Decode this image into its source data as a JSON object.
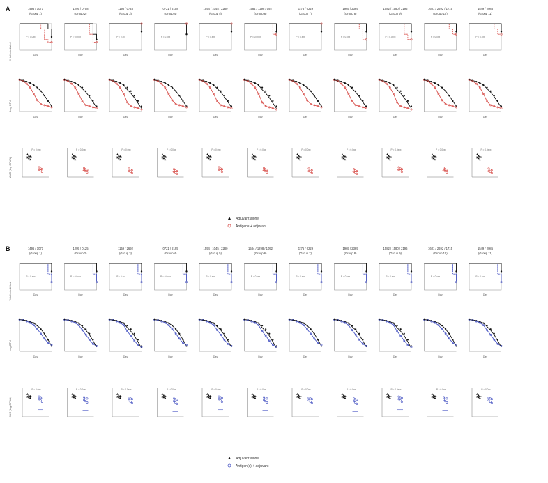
{
  "figure": {
    "panels": [
      {
        "letter": "A",
        "series_color": "#d9534f",
        "legend": [
          {
            "marker": "filled-triangle",
            "label": "Adjuvant alone"
          },
          {
            "marker": "open-circle",
            "label": "Antigens + adjuvant"
          }
        ],
        "row_ylabels": [
          "% infected/viral",
          "Log CFU",
          "AUC (log CFU/L)"
        ],
        "xlabel": "Day",
        "groups": [
          {
            "ids": "1496 / 1071",
            "group": "(Group 1)"
          },
          {
            "ids": "1295 / 0758",
            "group": "(Group 2)"
          },
          {
            "ids": "1198 / 0748",
            "group": "(Group 3)"
          },
          {
            "ids": "0721 / 2158",
            "group": "(Group 4)"
          },
          {
            "ids": "1594 / 1045 / 2280",
            "group": "(Group 5)"
          },
          {
            "ids": "1584 / 1298 / 092",
            "group": "(Group 6)"
          },
          {
            "ids": "0275 / 0229",
            "group": "(Group 7)"
          },
          {
            "ids": "1965 / 2369",
            "group": "(Group 8)"
          },
          {
            "ids": "1582 / 1580 / 2196",
            "group": "(Group 9)"
          },
          {
            "ids": "1601 / 2692 / 1715",
            "group": "(Group 10)"
          },
          {
            "ids": "1549 / 2085",
            "group": "(Group 11)"
          }
        ],
        "pvals_row1": [
          "P = 0.0xx",
          "P = 0.0xxx",
          "P = 0.xx",
          "P = 0.0xx",
          "P = 0.xxx",
          "P = 0.0xxx",
          "P = 0.xxx",
          "P = 0.0xx",
          "P = 0.0xxx",
          "P = 0.0xx",
          "P = 0.xxx"
        ],
        "pvals_row3": [
          "P = 0.0xx",
          "P = 0.0xxx",
          "P = 0.0xx",
          "P = 0.0xx",
          "P = 0.0xx",
          "P = 0.0xx",
          "P = 0.0xx",
          "P = 0.0xx",
          "P = 0.0xxx",
          "P = 0.0xxx",
          "P = 0.0xxx"
        ]
      },
      {
        "letter": "B",
        "series_color": "#4a57c4",
        "legend": [
          {
            "marker": "filled-triangle",
            "label": "Adjuvant alone"
          },
          {
            "marker": "open-circle",
            "label": "Antigen(s) + adjuvant"
          }
        ],
        "row_ylabels": [
          "% infected/viral",
          "Log CFU",
          "AUC (log CFU/L)"
        ],
        "xlabel": "Day",
        "groups": [
          {
            "ids": "1496 / 1071",
            "group": "(Group 1)"
          },
          {
            "ids": "1295 / 0125",
            "group": "(Group 2)"
          },
          {
            "ids": "1159 / 2692",
            "group": "(Group 3)"
          },
          {
            "ids": "0721 / 2195",
            "group": "(Group 4)"
          },
          {
            "ids": "1594 / 1045 / 2280",
            "group": "(Group 5)"
          },
          {
            "ids": "1584 / 1298 / 1092",
            "group": "(Group 6)"
          },
          {
            "ids": "0275 / 0229",
            "group": "(Group 7)"
          },
          {
            "ids": "1965 / 2369",
            "group": "(Group 8)"
          },
          {
            "ids": "1582 / 1580 / 2196",
            "group": "(Group 9)"
          },
          {
            "ids": "1601 / 2692 / 1715",
            "group": "(Group 10)"
          },
          {
            "ids": "1549 / 2085",
            "group": "(Group 11)"
          }
        ],
        "pvals_row1": [
          "P = 0.xxx",
          "P = 0.0xxx",
          "P = 0.xx",
          "P = 0.0xxx",
          "P = 0.xxx",
          "P = 0.xxx",
          "P = 0.xxx",
          "P = 0.xxx",
          "P = 0.xxx",
          "P = 0.xxx",
          "P = 0.xxx"
        ],
        "pvals_row3": [
          "P = 0.0xx",
          "P = 0.0xxx",
          "P = 0.0xxx",
          "P = 0.0xx",
          "P = 0.0xx",
          "P = 0.0xx",
          "P = 0.0xx",
          "P = 0.0xx",
          "P = 0.0xxx",
          "P = 0.0xx",
          "P = 0.0xx"
        ]
      }
    ]
  },
  "chart_data": [
    {
      "type": "line",
      "description_source": "Panel A row 1 (survival-style step curves per group)",
      "x": [
        0,
        1,
        2,
        3,
        4,
        5,
        6,
        7,
        8,
        9
      ],
      "ylim": [
        0,
        100
      ],
      "series": [
        {
          "name": "Adjuvant alone",
          "values_per_group": [
            [
              100,
              100,
              100,
              100,
              100,
              100,
              100,
              100,
              80,
              50
            ],
            [
              100,
              100,
              100,
              100,
              100,
              100,
              100,
              100,
              60,
              40
            ],
            [
              100,
              100,
              100,
              100,
              100,
              100,
              100,
              100,
              100,
              70
            ],
            [
              100,
              100,
              100,
              100,
              100,
              100,
              100,
              100,
              100,
              60
            ],
            [
              100,
              100,
              100,
              100,
              100,
              100,
              100,
              100,
              100,
              70
            ],
            [
              100,
              100,
              100,
              100,
              100,
              100,
              100,
              100,
              100,
              70
            ],
            [
              100,
              100,
              100,
              100,
              100,
              100,
              100,
              100,
              100,
              70
            ],
            [
              100,
              100,
              100,
              100,
              100,
              100,
              100,
              100,
              100,
              70
            ],
            [
              100,
              100,
              100,
              100,
              100,
              100,
              100,
              100,
              100,
              70
            ],
            [
              100,
              100,
              100,
              100,
              100,
              100,
              100,
              100,
              100,
              70
            ],
            [
              100,
              100,
              100,
              100,
              100,
              100,
              100,
              100,
              100,
              70
            ]
          ]
        },
        {
          "name": "Antigens + adjuvant",
          "values_per_group": [
            [
              100,
              100,
              100,
              100,
              100,
              100,
              80,
              40,
              30,
              30
            ],
            [
              100,
              100,
              100,
              100,
              100,
              100,
              100,
              60,
              30,
              30
            ],
            [
              100,
              100,
              100,
              100,
              100,
              100,
              100,
              100,
              100,
              100
            ],
            [
              100,
              100,
              100,
              100,
              100,
              100,
              100,
              100,
              100,
              100
            ],
            [
              100,
              100,
              100,
              100,
              100,
              100,
              100,
              100,
              100,
              100
            ],
            [
              100,
              100,
              100,
              100,
              100,
              100,
              100,
              100,
              60,
              60
            ],
            [
              100,
              100,
              100,
              100,
              100,
              100,
              100,
              100,
              100,
              100
            ],
            [
              100,
              100,
              100,
              100,
              100,
              100,
              100,
              80,
              40,
              40
            ],
            [
              100,
              100,
              100,
              100,
              100,
              100,
              100,
              60,
              40,
              40
            ],
            [
              100,
              100,
              100,
              100,
              100,
              100,
              100,
              80,
              60,
              60
            ],
            [
              100,
              100,
              100,
              100,
              100,
              100,
              100,
              80,
              60,
              60
            ]
          ]
        }
      ]
    },
    {
      "type": "line",
      "description_source": "Panel A row 2 (log CFU decline curves per group, approximate)",
      "x": [
        0,
        1,
        2,
        3,
        4,
        5,
        6,
        7,
        8,
        9
      ],
      "series": [
        {
          "name": "Adjuvant alone",
          "values": [
            9,
            8.8,
            8.5,
            8.1,
            7.5,
            6.8,
            5.8,
            4.5,
            3,
            1.5
          ]
        },
        {
          "name": "Antigens + adjuvant",
          "values": [
            9,
            8.6,
            7.9,
            6.8,
            5.0,
            3.2,
            2.1,
            1.8,
            1.5,
            1.2
          ]
        }
      ]
    },
    {
      "type": "scatter",
      "description_source": "Panel A row 3 (AUC per animal, approximate)",
      "series": [
        {
          "name": "Adjuvant alone",
          "values": [
            60,
            58,
            57,
            55,
            54,
            52
          ]
        },
        {
          "name": "Antigens + adjuvant",
          "values": [
            40,
            38,
            37,
            36,
            35,
            33
          ]
        }
      ]
    },
    {
      "type": "line",
      "description_source": "Panel B row 1 (survival-style step curves, approximate)",
      "x": [
        0,
        1,
        2,
        3,
        4,
        5,
        6,
        7,
        8,
        9
      ],
      "ylim": [
        0,
        100
      ],
      "series": [
        {
          "name": "Adjuvant alone",
          "values": [
            100,
            100,
            100,
            100,
            100,
            100,
            100,
            100,
            100,
            70
          ]
        },
        {
          "name": "Antigen(s) + adjuvant",
          "values": [
            100,
            100,
            100,
            100,
            100,
            100,
            100,
            100,
            60,
            30
          ]
        }
      ]
    },
    {
      "type": "line",
      "description_source": "Panel B row 2 (log CFU decline curves, approximate)",
      "x": [
        0,
        1,
        2,
        3,
        4,
        5,
        6,
        7,
        8,
        9
      ],
      "series": [
        {
          "name": "Adjuvant alone",
          "values": [
            9,
            8.9,
            8.7,
            8.4,
            8.0,
            7.3,
            6.3,
            5.0,
            3.3,
            1.5
          ]
        },
        {
          "name": "Antigen(s) + adjuvant",
          "values": [
            9,
            8.8,
            8.5,
            8.1,
            7.4,
            6.3,
            5.0,
            3.6,
            2.4,
            1.8
          ]
        }
      ]
    },
    {
      "type": "scatter",
      "description_source": "Panel B row 3 (AUC per animal, approximate)",
      "series": [
        {
          "name": "Adjuvant alone",
          "values": [
            60,
            58,
            57,
            56,
            55,
            54
          ]
        },
        {
          "name": "Antigen(s) + adjuvant",
          "values": [
            56,
            55,
            54,
            52,
            50,
            48
          ]
        }
      ]
    }
  ]
}
